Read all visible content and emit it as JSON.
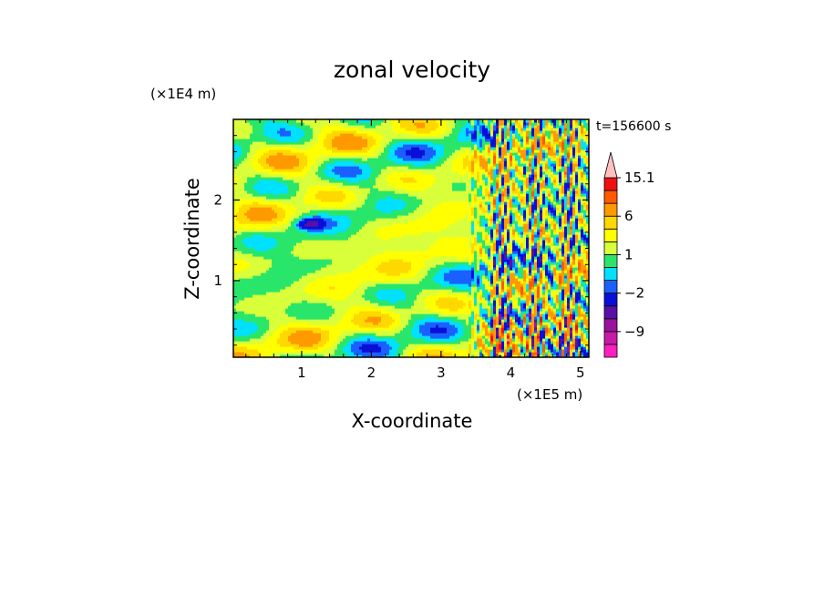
{
  "chart_data": {
    "type": "heatmap",
    "title": "zonal velocity",
    "xlabel": "X-coordinate",
    "ylabel": "Z-coordinate",
    "x_unit": "(×1E5 m)",
    "y_unit": "(×1E4 m)",
    "time_label": "t=156600 s",
    "xlim": [
      0.02,
      5.12
    ],
    "ylim": [
      0.05,
      3.0
    ],
    "x_ticks": [
      "1",
      "2",
      "3",
      "4",
      "5"
    ],
    "x_tick_values": [
      1,
      2,
      3,
      4,
      5
    ],
    "y_ticks": [
      "1",
      "2"
    ],
    "y_tick_values": [
      1,
      2
    ],
    "colorbar": {
      "levels": [
        -15,
        -12,
        -9,
        -6,
        -3,
        -2,
        -1,
        0,
        1,
        2,
        3,
        6,
        9,
        12,
        15.1
      ],
      "tick_labels": [
        "15.1",
        "6",
        "1",
        "−2",
        "−9"
      ],
      "tick_values": [
        15.1,
        6,
        1,
        -2,
        -9
      ],
      "colors": [
        "#ff1fbf",
        "#c81aa8",
        "#9b12a0",
        "#5a0fa8",
        "#0a0fd8",
        "#1a60ff",
        "#00e0ff",
        "#29e66b",
        "#d8ff3a",
        "#ffff00",
        "#ffd800",
        "#ff9900",
        "#ff5a00",
        "#ee1111",
        "#ff8a8a",
        "#ffc0c0"
      ],
      "extend": "max"
    },
    "field_description": "u(x,z) contoured; dominant values between -2 and 3, strong small-scale structure for x between 3.5 and 5"
  }
}
